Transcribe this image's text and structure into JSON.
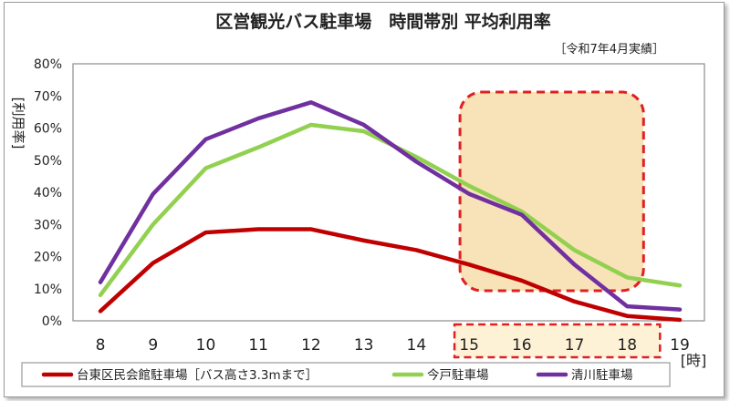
{
  "chart_data": {
    "type": "line",
    "title": "区営観光バス駐車場　時間帯別 平均利用率",
    "subtitle": "［令和7年4月実績］",
    "ylabel": "[利用率]",
    "xlabel": "[時]",
    "x": [
      8,
      9,
      10,
      11,
      12,
      13,
      14,
      15,
      16,
      17,
      18,
      19
    ],
    "ylim": [
      0,
      80
    ],
    "yticks": [
      "0%",
      "10%",
      "20%",
      "30%",
      "40%",
      "50%",
      "60%",
      "70%",
      "80%"
    ],
    "grid": false,
    "legend_position": "bottom",
    "highlight": {
      "from": 15,
      "to": 18,
      "fill": "#f7dfb0",
      "border": "#e02020"
    },
    "series": [
      {
        "name": "台東区民会館駐車場［バス高さ3.3mまで］",
        "color": "#c00000",
        "values": [
          3,
          18,
          27.5,
          28.5,
          28.5,
          25,
          22,
          17.5,
          12.5,
          6,
          1.5,
          0.3
        ]
      },
      {
        "name": "今戸駐車場",
        "color": "#92d050",
        "values": [
          8,
          30,
          47.5,
          54,
          61,
          59,
          51,
          42,
          34,
          22,
          13.5,
          11
        ]
      },
      {
        "name": "清川駐車場",
        "color": "#7030a0",
        "values": [
          12,
          39.5,
          56.5,
          63,
          68,
          61,
          49.5,
          39.5,
          33,
          17.5,
          4.5,
          3.5
        ]
      }
    ]
  }
}
